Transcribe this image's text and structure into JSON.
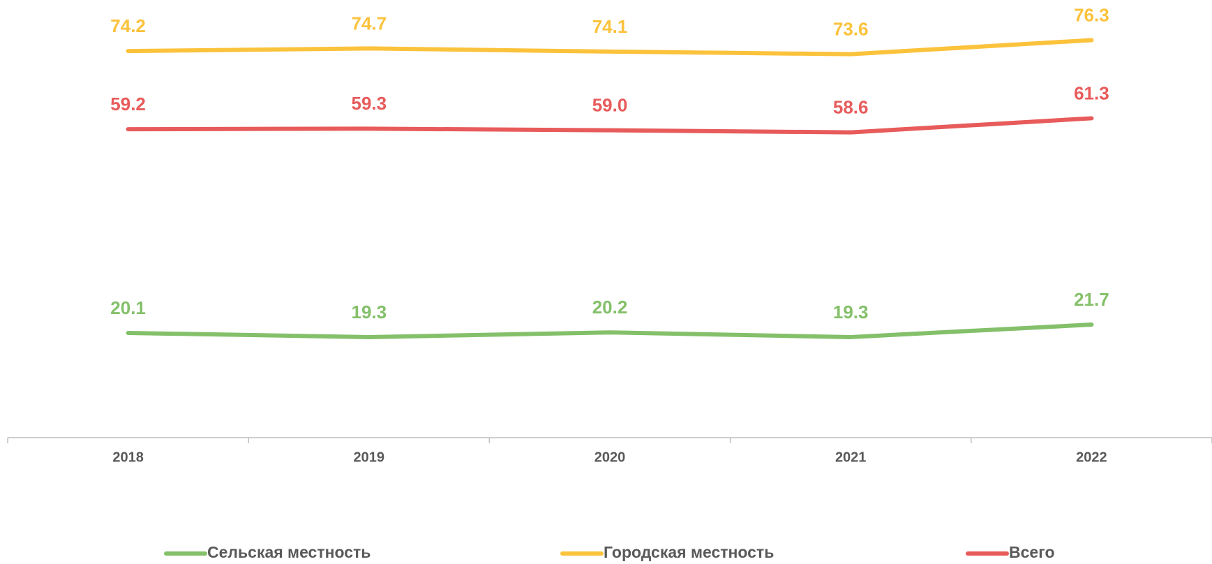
{
  "chart_data": {
    "type": "line",
    "categories": [
      "2018",
      "2019",
      "2020",
      "2021",
      "2022"
    ],
    "series": [
      {
        "name": "Сельская местность",
        "color": "#84c06a",
        "values": [
          20.1,
          19.3,
          20.2,
          19.3,
          21.7
        ],
        "value_labels": [
          "20.1",
          "19.3",
          "20.2",
          "19.3",
          "21.7"
        ]
      },
      {
        "name": "Городская местность",
        "color": "#fbc23c",
        "values": [
          74.2,
          74.7,
          74.1,
          73.6,
          76.3
        ],
        "value_labels": [
          "74.2",
          "74.7",
          "74.1",
          "73.6",
          "76.3"
        ]
      },
      {
        "name": "Всего",
        "color": "#e85b5b",
        "values": [
          59.2,
          59.3,
          59.0,
          58.6,
          61.3
        ],
        "value_labels": [
          "59.2",
          "59.3",
          "59.0",
          "58.6",
          "61.3"
        ]
      }
    ],
    "ylim": [
      0,
      84
    ],
    "grid": false
  }
}
